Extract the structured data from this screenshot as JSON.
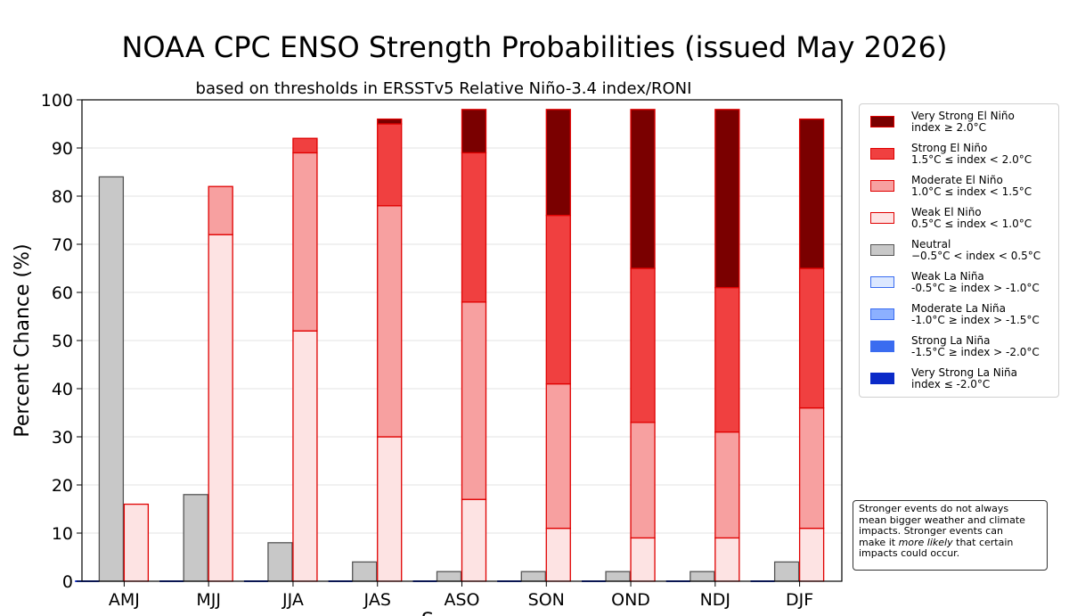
{
  "title": "NOAA CPC ENSO Strength Probabilities (issued May 2026)",
  "subtitle": "based on thresholds in ERSSTv5 Relative Niño-3.4 index/RONI",
  "colors": {
    "very_strong_el_nino": "#7a0000",
    "strong_el_nino": "#f04040",
    "moderate_el_nino": "#f7a0a0",
    "weak_el_nino": "#fde3e3",
    "neutral": "#c8c8c8",
    "weak_la_nina": "#dce8ff",
    "moderate_la_nina": "#8cb0ff",
    "strong_la_nina": "#3a6cf0",
    "very_strong_la_nina": "#0a2ac8",
    "el_nino_edge": "#e00000",
    "neutral_edge": "#555555"
  },
  "legend": [
    {
      "line1": "Very Strong El Niño",
      "line2": "index ≥ 2.0°C",
      "color_key": "very_strong_el_nino",
      "edge_key": "el_nino_edge"
    },
    {
      "line1": "Strong El Niño",
      "line2": "1.5°C ≤ index < 2.0°C",
      "color_key": "strong_el_nino",
      "edge_key": "el_nino_edge"
    },
    {
      "line1": "Moderate El Niño",
      "line2": "1.0°C ≤ index < 1.5°C",
      "color_key": "moderate_el_nino",
      "edge_key": "el_nino_edge"
    },
    {
      "line1": "Weak El Niño",
      "line2": "0.5°C ≤ index < 1.0°C",
      "color_key": "weak_el_nino",
      "edge_key": "el_nino_edge"
    },
    {
      "line1": "Neutral",
      "line2": "−0.5°C < index < 0.5°C",
      "color_key": "neutral",
      "edge_key": "neutral_edge"
    },
    {
      "line1": "Weak La Niña",
      "line2": "-0.5°C ≥ index > -1.0°C",
      "color_key": "weak_la_nina",
      "edge_key": "strong_la_nina"
    },
    {
      "line1": "Moderate La Niña",
      "line2": "-1.0°C ≥ index > -1.5°C",
      "color_key": "moderate_la_nina",
      "edge_key": "strong_la_nina"
    },
    {
      "line1": "Strong La Niña",
      "line2": "-1.5°C ≥ index > -2.0°C",
      "color_key": "strong_la_nina",
      "edge_key": "strong_la_nina"
    },
    {
      "line1": "Very Strong La Niña",
      "line2": "index ≤ -2.0°C",
      "color_key": "very_strong_la_nina",
      "edge_key": "very_strong_la_nina"
    }
  ],
  "note": {
    "lines": [
      {
        "text": "Stronger events do not always",
        "em": false
      },
      {
        "text": "mean bigger weather and climate",
        "em": false
      },
      {
        "text": "impacts. Stronger events can",
        "em": false
      },
      {
        "text": "make it ",
        "em_text": "more likely",
        "after": " that certain",
        "em": true
      },
      {
        "text": "impacts could occur.",
        "em": false
      }
    ]
  },
  "chart_data": {
    "type": "bar",
    "stacked": true,
    "title": "NOAA CPC ENSO Strength Probabilities (issued May 2026)",
    "subtitle": "based on thresholds in ERSSTv5 Relative Niño-3.4 index/RONI",
    "ylabel": "Percent Chance (%)",
    "xlabel": "S",
    "ylim": [
      0,
      100
    ],
    "yticks": [
      0,
      10,
      20,
      30,
      40,
      50,
      60,
      70,
      80,
      90,
      100
    ],
    "grid": true,
    "legend_position": "right",
    "categories": [
      "AMJ",
      "MJJ",
      "JJA",
      "JAS",
      "ASO",
      "SON",
      "OND",
      "NDJ",
      "DJF"
    ],
    "series": [
      {
        "name": "Very Strong La Niña",
        "group": "la_nina",
        "values": [
          0,
          0,
          0,
          0,
          0,
          0,
          0,
          0,
          0
        ]
      },
      {
        "name": "Strong La Niña",
        "group": "la_nina",
        "values": [
          0,
          0,
          0,
          0,
          0,
          0,
          0,
          0,
          0
        ]
      },
      {
        "name": "Moderate La Niña",
        "group": "la_nina",
        "values": [
          0,
          0,
          0,
          0,
          0,
          0,
          0,
          0,
          0
        ]
      },
      {
        "name": "Weak La Niña",
        "group": "la_nina",
        "values": [
          0,
          0,
          0,
          0,
          0,
          0,
          0,
          0,
          0
        ]
      },
      {
        "name": "Neutral",
        "group": "neutral",
        "values": [
          84,
          18,
          8,
          4,
          2,
          2,
          2,
          2,
          4
        ]
      },
      {
        "name": "Weak El Niño",
        "group": "el_nino",
        "values": [
          16,
          72,
          52,
          30,
          17,
          11,
          9,
          9,
          11
        ]
      },
      {
        "name": "Moderate El Niño",
        "group": "el_nino",
        "values": [
          0,
          10,
          37,
          48,
          41,
          30,
          24,
          22,
          25
        ]
      },
      {
        "name": "Strong El Niño",
        "group": "el_nino",
        "values": [
          0,
          0,
          3,
          17,
          31,
          35,
          32,
          30,
          29
        ]
      },
      {
        "name": "Very Strong El Niño",
        "group": "el_nino",
        "values": [
          0,
          0,
          0,
          1,
          9,
          22,
          33,
          37,
          31
        ]
      }
    ]
  }
}
